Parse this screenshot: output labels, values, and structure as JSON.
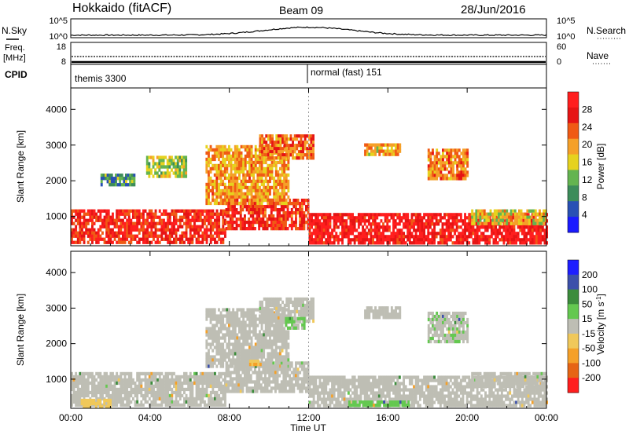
{
  "header": {
    "station": "Hokkaido (fitACF)",
    "beam": "Beam 09",
    "date": "28/Jun/2016"
  },
  "strips": {
    "nsky_label": "N.Sky",
    "freq_label_1": "Freq.",
    "freq_label_2": "[MHz]",
    "cpid_label": "CPID",
    "nsearch_label": "N.Search",
    "nave_label": "Nave",
    "nsky_ticks": [
      "10^5",
      "10^0"
    ],
    "nsearch_ticks": [
      "10^5",
      "10^0"
    ],
    "freq_ticks": [
      "18",
      "8"
    ],
    "nave_ticks": [
      "60",
      "0"
    ],
    "cpid_programs": [
      {
        "name": "themis 3300",
        "start_hour": 0
      },
      {
        "name": "normal (fast) 151",
        "start_hour": 12
      }
    ]
  },
  "colors": {
    "power": [
      "#1a1aff",
      "#2850b4",
      "#3c8c5a",
      "#64b450",
      "#e6d21e",
      "#f5a028",
      "#f05a14",
      "#e61414",
      "#ff1e1e"
    ],
    "velocity": [
      "#ff1e1e",
      "#e66414",
      "#f5a028",
      "#f0c85a",
      "#bebeb4",
      "#64c850",
      "#3c8c3c",
      "#3c50aa",
      "#1e1eff"
    ]
  },
  "chart_data": [
    {
      "type": "heatmap",
      "title": "Power",
      "ylabel": "Slant Range [km]",
      "xlabel": "",
      "x_ticks": [
        "00:00",
        "04:00",
        "08:00",
        "12:00",
        "16:00",
        "20:00",
        "00:00"
      ],
      "xlim_hours": [
        0,
        24
      ],
      "ylim_km": [
        180,
        4600
      ],
      "y_ticks": [
        1000,
        2000,
        3000,
        4000
      ],
      "colorbar": {
        "label": "Power [dB]",
        "range": [
          0,
          32
        ],
        "ticks": [
          4,
          8,
          12,
          16,
          20,
          24,
          28
        ]
      },
      "regions": [
        {
          "t0": 0.0,
          "t1": 7.8,
          "r0": 280,
          "r1": 1200,
          "value": 27
        },
        {
          "t0": 7.8,
          "t1": 12.0,
          "r0": 700,
          "r1": 1500,
          "value": 26
        },
        {
          "t0": 12.0,
          "t1": 24.0,
          "r0": 300,
          "r1": 1100,
          "value": 29
        },
        {
          "t0": 6.8,
          "t1": 11.0,
          "r0": 1400,
          "r1": 3000,
          "value": 20
        },
        {
          "t0": 9.5,
          "t1": 12.2,
          "r0": 2600,
          "r1": 3300,
          "value": 22
        },
        {
          "t0": 14.8,
          "t1": 16.6,
          "r0": 2700,
          "r1": 3050,
          "value": 19
        },
        {
          "t0": 18.0,
          "t1": 20.0,
          "r0": 2100,
          "r1": 2900,
          "value": 21
        },
        {
          "t0": 20.2,
          "t1": 24.0,
          "r0": 800,
          "r1": 1200,
          "value": 17
        },
        {
          "t0": 3.8,
          "t1": 5.8,
          "r0": 2100,
          "r1": 2700,
          "value": 14
        },
        {
          "t0": 1.5,
          "t1": 3.2,
          "r0": 1850,
          "r1": 2200,
          "value": 10
        }
      ]
    },
    {
      "type": "heatmap",
      "title": "Velocity",
      "ylabel": "Slant Range [km]",
      "xlabel": "Time UT",
      "x_ticks": [
        "00:00",
        "04:00",
        "08:00",
        "12:00",
        "16:00",
        "20:00",
        "00:00"
      ],
      "xlim_hours": [
        0,
        24
      ],
      "ylim_km": [
        180,
        4600
      ],
      "y_ticks": [
        1000,
        2000,
        3000,
        4000
      ],
      "colorbar": {
        "label": "Velocity [m s^-1]",
        "range": [
          -240,
          240
        ],
        "ticks": [
          200,
          100,
          50,
          15,
          -15,
          -50,
          -100,
          -200
        ]
      },
      "regions": [
        {
          "t0": 0.0,
          "t1": 7.8,
          "r0": 280,
          "r1": 1200,
          "value": 0
        },
        {
          "t0": 7.8,
          "t1": 12.0,
          "r0": 700,
          "r1": 1500,
          "value": 0
        },
        {
          "t0": 12.0,
          "t1": 24.0,
          "r0": 300,
          "r1": 1100,
          "value": 0
        },
        {
          "t0": 6.8,
          "t1": 11.0,
          "r0": 1400,
          "r1": 3000,
          "value": 5
        },
        {
          "t0": 9.5,
          "t1": 12.2,
          "r0": 2600,
          "r1": 3300,
          "value": 5
        },
        {
          "t0": 10.8,
          "t1": 11.8,
          "r0": 2400,
          "r1": 2750,
          "value": 30
        },
        {
          "t0": 14.8,
          "t1": 16.6,
          "r0": 2700,
          "r1": 3050,
          "value": 0
        },
        {
          "t0": 18.0,
          "t1": 20.0,
          "r0": 2100,
          "r1": 2900,
          "value": 20
        },
        {
          "t0": 20.2,
          "t1": 24.0,
          "r0": 800,
          "r1": 1200,
          "value": 0
        },
        {
          "t0": 9.0,
          "t1": 9.6,
          "r0": 1400,
          "r1": 1550,
          "value": -80
        },
        {
          "t0": 14.0,
          "t1": 17.0,
          "r0": 250,
          "r1": 400,
          "value": 40
        },
        {
          "t0": 0.5,
          "t1": 2.0,
          "r0": 250,
          "r1": 450,
          "value": -60
        }
      ]
    }
  ]
}
